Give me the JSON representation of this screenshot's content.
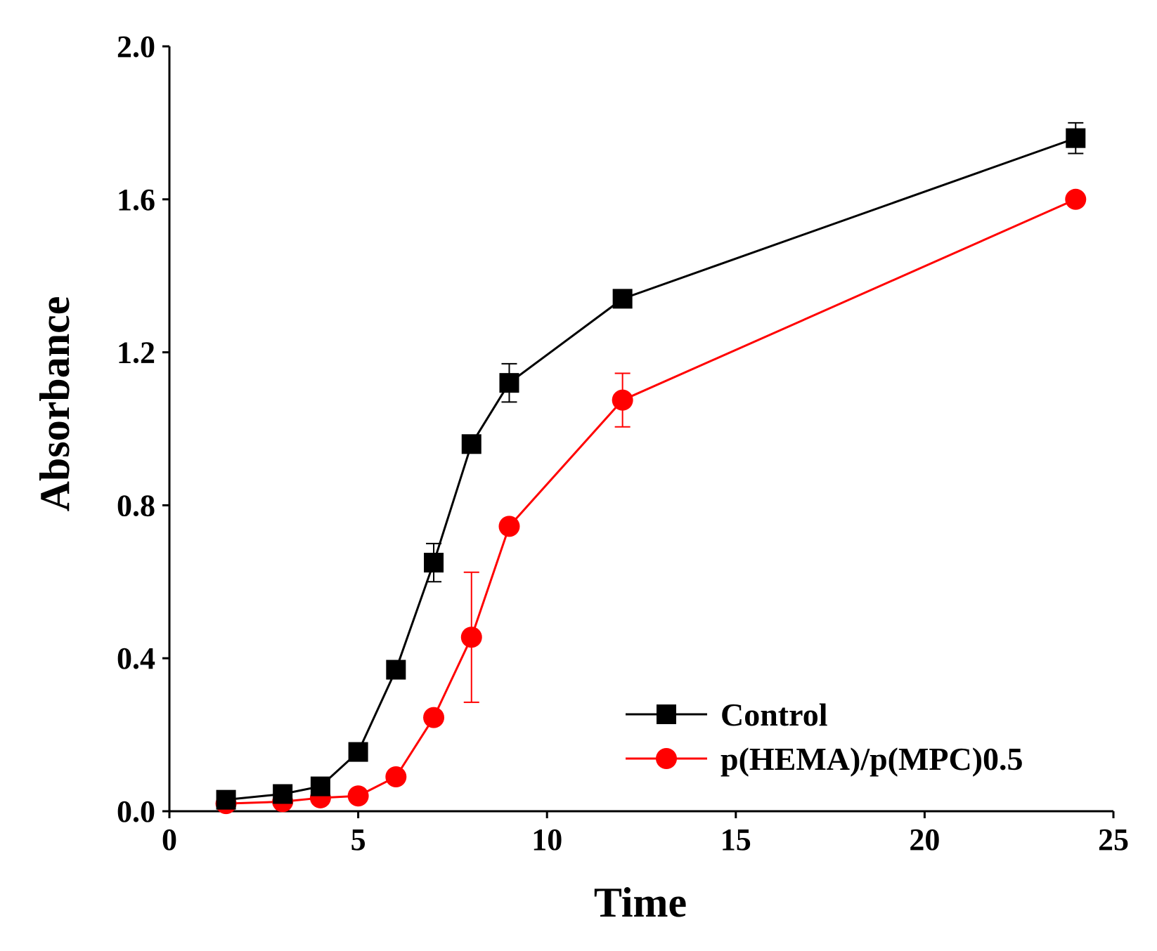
{
  "chart_data": {
    "type": "line",
    "title": "",
    "xlabel": "Time",
    "ylabel": "Absorbance",
    "xlim": [
      0,
      25
    ],
    "ylim": [
      0,
      2.0
    ],
    "x_ticks": [
      0,
      5,
      10,
      15,
      20,
      25
    ],
    "x_tick_labels": [
      "0",
      "5",
      "10",
      "15",
      "20",
      "25"
    ],
    "y_ticks": [
      0,
      0.4,
      0.8,
      1.2,
      1.6,
      2.0
    ],
    "y_tick_labels": [
      "0.0",
      "0.4",
      "0.8",
      "1.2",
      "1.6",
      "2.0"
    ],
    "grid": false,
    "legend_position": "bottom-right",
    "series": [
      {
        "name": "Control",
        "color": "#000000",
        "marker": "square",
        "x": [
          1.5,
          3,
          4,
          5,
          6,
          7,
          8,
          9,
          12,
          24
        ],
        "values": [
          0.03,
          0.045,
          0.065,
          0.155,
          0.37,
          0.65,
          0.96,
          1.12,
          1.34,
          1.76
        ],
        "errors": [
          0.0,
          0.0,
          0.0,
          0.0,
          0.0,
          0.05,
          0.0,
          0.05,
          0.0,
          0.04
        ]
      },
      {
        "name": "p(HEMA)/p(MPC)0.5",
        "color": "#ff0000",
        "marker": "circle",
        "x": [
          1.5,
          3,
          4,
          5,
          6,
          7,
          8,
          9,
          12,
          24
        ],
        "values": [
          0.02,
          0.025,
          0.035,
          0.04,
          0.09,
          0.245,
          0.455,
          0.745,
          1.075,
          1.6
        ],
        "errors": [
          0.0,
          0.0,
          0.0,
          0.0,
          0.0,
          0.0,
          0.17,
          0.0,
          0.07,
          0.0
        ]
      }
    ]
  }
}
